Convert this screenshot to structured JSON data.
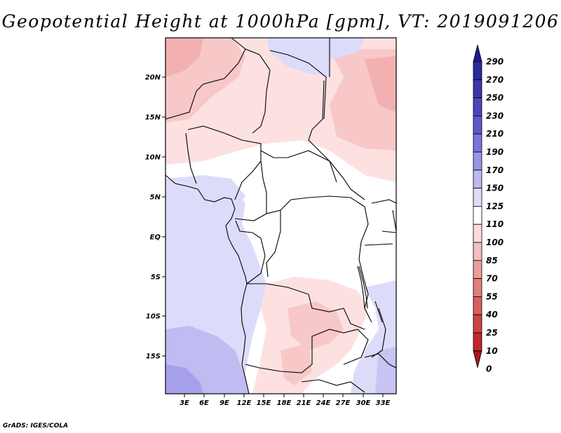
{
  "title": "Geopotential Height at 1000hPa [gpm], VT: 2019091206",
  "credit": "GrADS: IGES/COLA",
  "lat_labels": [
    "20N",
    "15N",
    "10N",
    "5N",
    "EQ",
    "5S",
    "10S",
    "15S"
  ],
  "lon_labels": [
    "3E",
    "6E",
    "9E",
    "12E",
    "15E",
    "18E",
    "21E",
    "24E",
    "27E",
    "30E",
    "33E"
  ],
  "colorbar": {
    "levels": [
      "290",
      "270",
      "250",
      "230",
      "210",
      "190",
      "170",
      "150",
      "125",
      "110",
      "100",
      "85",
      "70",
      "55",
      "40",
      "25",
      "10",
      "0"
    ],
    "colors_top_to_bottom": [
      "#1e1a8c",
      "#2a2a9e",
      "#3c36ae",
      "#4a45bc",
      "#5e58cc",
      "#7a74dc",
      "#9a94e8",
      "#bcb8f2",
      "#dcdcfa",
      "#ffffff",
      "#fbdcdc",
      "#f5bdbd",
      "#ec9c9c",
      "#e27e7e",
      "#d85f5f",
      "#ce4242",
      "#c02828",
      "#a81818"
    ]
  },
  "map": {
    "region": "Central Africa",
    "lon_range": [
      0,
      35
    ],
    "lat_range": [
      -20,
      24
    ]
  }
}
